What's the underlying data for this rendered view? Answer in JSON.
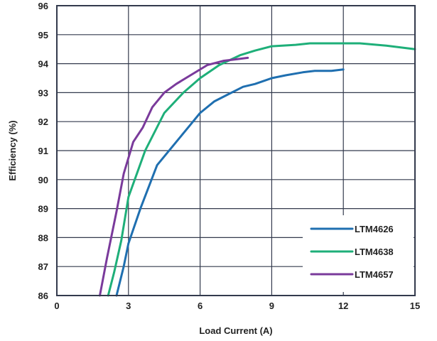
{
  "chart_data": {
    "type": "line",
    "title": "",
    "xlabel": "Load Current (A)",
    "ylabel": "Efficiency (%)",
    "xlim": [
      0,
      15
    ],
    "ylim": [
      86,
      96
    ],
    "x_ticks": [
      0,
      3,
      6,
      9,
      12,
      15
    ],
    "y_ticks": [
      86,
      87,
      88,
      89,
      90,
      91,
      92,
      93,
      94,
      95,
      96
    ],
    "grid": true,
    "legend_position": "bottom-right",
    "colors": {
      "frame": "#333a4d",
      "grid": "#333a4d"
    },
    "series": [
      {
        "name": "LTM4626",
        "color": "#1f6fb0",
        "points": [
          [
            2.5,
            86.0
          ],
          [
            2.8,
            87.0
          ],
          [
            3.0,
            87.8
          ],
          [
            3.5,
            89.0
          ],
          [
            4.2,
            90.5
          ],
          [
            5.0,
            91.3
          ],
          [
            5.6,
            91.9
          ],
          [
            6.0,
            92.3
          ],
          [
            6.6,
            92.7
          ],
          [
            7.2,
            92.95
          ],
          [
            7.8,
            93.2
          ],
          [
            8.3,
            93.3
          ],
          [
            9.0,
            93.5
          ],
          [
            9.6,
            93.6
          ],
          [
            10.3,
            93.7
          ],
          [
            10.8,
            93.75
          ],
          [
            11.5,
            93.75
          ],
          [
            12.0,
            93.8
          ]
        ]
      },
      {
        "name": "LTM4638",
        "color": "#1eaf79",
        "points": [
          [
            2.15,
            86.0
          ],
          [
            2.4,
            86.8
          ],
          [
            2.7,
            87.9
          ],
          [
            3.0,
            89.4
          ],
          [
            3.7,
            91.0
          ],
          [
            4.5,
            92.3
          ],
          [
            5.3,
            93.0
          ],
          [
            6.0,
            93.5
          ],
          [
            6.8,
            93.95
          ],
          [
            7.7,
            94.3
          ],
          [
            8.3,
            94.45
          ],
          [
            9.0,
            94.6
          ],
          [
            10.0,
            94.65
          ],
          [
            10.6,
            94.7
          ],
          [
            11.5,
            94.7
          ],
          [
            12.7,
            94.7
          ],
          [
            13.8,
            94.62
          ],
          [
            15.0,
            94.5
          ]
        ]
      },
      {
        "name": "LTM4657",
        "color": "#7a3a9b",
        "points": [
          [
            1.8,
            86.0
          ],
          [
            2.1,
            87.3
          ],
          [
            2.5,
            88.9
          ],
          [
            2.8,
            90.2
          ],
          [
            3.2,
            91.3
          ],
          [
            3.6,
            91.8
          ],
          [
            4.0,
            92.5
          ],
          [
            4.5,
            93.0
          ],
          [
            5.0,
            93.3
          ],
          [
            5.7,
            93.65
          ],
          [
            6.3,
            93.95
          ],
          [
            7.0,
            94.1
          ],
          [
            7.5,
            94.15
          ],
          [
            8.0,
            94.2
          ]
        ]
      }
    ]
  }
}
